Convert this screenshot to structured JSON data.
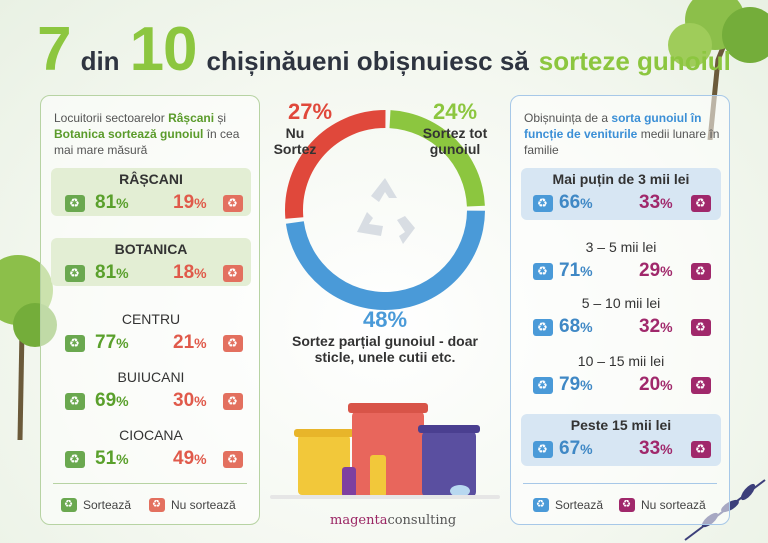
{
  "headline": {
    "big1": "7",
    "mid1": "din",
    "big2": "10",
    "mid2": "chișinăueni obișnuiesc să",
    "accent": "sorteze gunoiul"
  },
  "left_panel": {
    "intro_1": "Locuitorii sectoarelor ",
    "intro_b1": "Râșcani",
    "intro_2": " și ",
    "intro_b2": "Botanica sortează gunoiul",
    "intro_3": " în cea mai mare măsură",
    "legend_sort": "Sortează",
    "legend_nosort": "Nu sortează"
  },
  "right_panel": {
    "intro_1": "Obișnuința de a ",
    "intro_b1": "sorta gunoiul în funcție de veniturile",
    "intro_2": " medii lunare în familie",
    "legend_sort": "Sortează",
    "legend_nosort": "Nu sortează"
  },
  "colors": {
    "green": "#8cc63f",
    "red": "#e05a4b",
    "blue": "#4a9ad8",
    "purple": "#a0286b"
  },
  "brand": {
    "part1": "magenta",
    "part2": "consulting"
  },
  "chart_data": [
    {
      "type": "pie",
      "variant": "donut",
      "slices": [
        {
          "label": "Nu Sortez",
          "value": 27,
          "display": "27%",
          "color": "#e0483b"
        },
        {
          "label": "Sortez tot gunoiul",
          "value": 24,
          "display": "24%",
          "color": "#8cc63f"
        },
        {
          "label": "Sortez parțial gunoiul - doar sticle, unele cutii etc.",
          "value": 48,
          "display": "48%",
          "color": "#4a9ad8"
        }
      ]
    },
    {
      "type": "table",
      "rows": [
        {
          "name": "RÂȘCANI",
          "sort": "81",
          "nosort": "19",
          "highlight": true
        },
        {
          "name": "BOTANICA",
          "sort": "81",
          "nosort": "18",
          "highlight": true
        },
        {
          "name": "CENTRU",
          "sort": "77",
          "nosort": "21",
          "highlight": false
        },
        {
          "name": "BUIUCANI",
          "sort": "69",
          "nosort": "30",
          "highlight": false
        },
        {
          "name": "CIOCANA",
          "sort": "51",
          "nosort": "49",
          "highlight": false
        }
      ]
    },
    {
      "type": "table",
      "rows": [
        {
          "name": "Mai puțin de 3 mii lei",
          "sort": "66",
          "nosort": "33",
          "highlight": true
        },
        {
          "name": "3 – 5 mii lei",
          "sort": "71",
          "nosort": "29",
          "highlight": false
        },
        {
          "name": "5 – 10 mii lei",
          "sort": "68",
          "nosort": "32",
          "highlight": false
        },
        {
          "name": "10 – 15 mii lei",
          "sort": "79",
          "nosort": "20",
          "highlight": false
        },
        {
          "name": "Peste 15 mii lei",
          "sort": "67",
          "nosort": "33",
          "highlight": true
        }
      ]
    }
  ]
}
